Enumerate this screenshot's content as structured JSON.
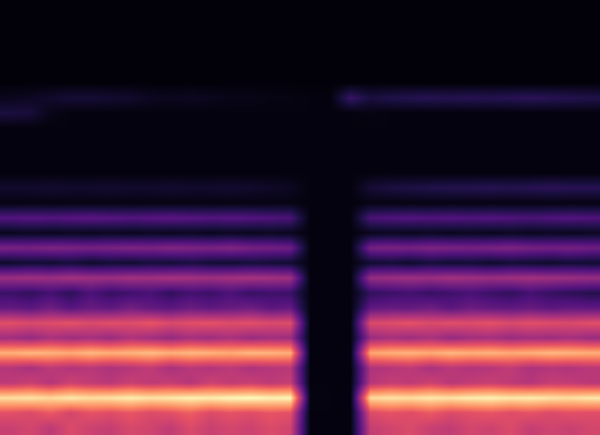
{
  "chart_data": {
    "type": "heatmap",
    "grid": false,
    "tick_labels": false,
    "zlim": [
      0,
      1
    ],
    "cells": [
      [
        0.55,
        0.58,
        0.52,
        0.6,
        0.56,
        0.54,
        0.59,
        0.57,
        0.53,
        0.6,
        0.55,
        0.58,
        0.56,
        0.6,
        0.57,
        0.02,
        0.02,
        0.02,
        0.54,
        0.57,
        0.6,
        0.55,
        0.53,
        0.58,
        0.56,
        0.6,
        0.54,
        0.57,
        0.55,
        0.58
      ],
      [
        0.62,
        0.6,
        0.65,
        0.58,
        0.63,
        0.61,
        0.64,
        0.6,
        0.62,
        0.66,
        0.6,
        0.63,
        0.61,
        0.64,
        0.62,
        0.02,
        0.02,
        0.02,
        0.6,
        0.63,
        0.61,
        0.65,
        0.6,
        0.62,
        0.64,
        0.61,
        0.63,
        0.6,
        0.62,
        0.61
      ],
      [
        0.94,
        0.95,
        0.93,
        0.96,
        0.94,
        0.95,
        0.97,
        0.95,
        0.96,
        0.98,
        0.97,
        0.99,
        1.0,
        0.98,
        0.99,
        0.03,
        0.02,
        0.02,
        0.93,
        0.95,
        0.94,
        0.96,
        0.95,
        0.97,
        0.98,
        0.96,
        0.97,
        0.95,
        0.94,
        0.96
      ],
      [
        0.52,
        0.55,
        0.5,
        0.56,
        0.53,
        0.51,
        0.55,
        0.52,
        0.54,
        0.5,
        0.56,
        0.53,
        0.55,
        0.52,
        0.54,
        0.02,
        0.02,
        0.02,
        0.5,
        0.54,
        0.52,
        0.56,
        0.51,
        0.53,
        0.55,
        0.52,
        0.5,
        0.54,
        0.53,
        0.51
      ],
      [
        0.5,
        0.47,
        0.52,
        0.49,
        0.51,
        0.48,
        0.5,
        0.53,
        0.47,
        0.51,
        0.49,
        0.52,
        0.48,
        0.5,
        0.51,
        0.02,
        0.02,
        0.02,
        0.48,
        0.5,
        0.52,
        0.47,
        0.51,
        0.49,
        0.5,
        0.53,
        0.48,
        0.5,
        0.49,
        0.51
      ],
      [
        0.84,
        0.86,
        0.85,
        0.83,
        0.86,
        0.84,
        0.85,
        0.87,
        0.84,
        0.86,
        0.85,
        0.83,
        0.86,
        0.85,
        0.84,
        0.02,
        0.02,
        0.02,
        0.82,
        0.84,
        0.85,
        0.83,
        0.86,
        0.84,
        0.85,
        0.83,
        0.84,
        0.86,
        0.85,
        0.84
      ],
      [
        0.45,
        0.42,
        0.47,
        0.44,
        0.46,
        0.43,
        0.48,
        0.45,
        0.42,
        0.46,
        0.44,
        0.47,
        0.43,
        0.45,
        0.44,
        0.02,
        0.02,
        0.02,
        0.43,
        0.46,
        0.44,
        0.47,
        0.42,
        0.45,
        0.46,
        0.43,
        0.45,
        0.44,
        0.46,
        0.43
      ],
      [
        0.62,
        0.6,
        0.61,
        0.63,
        0.6,
        0.62,
        0.61,
        0.64,
        0.6,
        0.62,
        0.63,
        0.61,
        0.62,
        0.6,
        0.61,
        0.02,
        0.02,
        0.02,
        0.6,
        0.61,
        0.63,
        0.6,
        0.62,
        0.61,
        0.63,
        0.6,
        0.62,
        0.61,
        0.6,
        0.62
      ],
      [
        0.3,
        0.28,
        0.33,
        0.27,
        0.31,
        0.29,
        0.34,
        0.3,
        0.28,
        0.32,
        0.29,
        0.31,
        0.33,
        0.28,
        0.3,
        0.02,
        0.02,
        0.02,
        0.29,
        0.31,
        0.3,
        0.33,
        0.28,
        0.32,
        0.3,
        0.29,
        0.31,
        0.28,
        0.3,
        0.29
      ],
      [
        0.2,
        0.18,
        0.22,
        0.17,
        0.24,
        0.19,
        0.21,
        0.23,
        0.18,
        0.22,
        0.2,
        0.24,
        0.19,
        0.21,
        0.2,
        0.02,
        0.02,
        0.02,
        0.18,
        0.2,
        0.22,
        0.19,
        0.21,
        0.23,
        0.2,
        0.18,
        0.22,
        0.19,
        0.17,
        0.15
      ],
      [
        0.44,
        0.45,
        0.44,
        0.46,
        0.45,
        0.44,
        0.46,
        0.45,
        0.47,
        0.46,
        0.45,
        0.46,
        0.47,
        0.46,
        0.45,
        0.02,
        0.02,
        0.02,
        0.43,
        0.44,
        0.45,
        0.44,
        0.46,
        0.45,
        0.44,
        0.45,
        0.46,
        0.45,
        0.44,
        0.43
      ],
      [
        0.08,
        0.1,
        0.09,
        0.11,
        0.08,
        0.1,
        0.09,
        0.11,
        0.1,
        0.12,
        0.1,
        0.09,
        0.11,
        0.1,
        0.09,
        0.02,
        0.02,
        0.02,
        0.09,
        0.1,
        0.08,
        0.11,
        0.09,
        0.1,
        0.08,
        0.1,
        0.09,
        0.08,
        0.1,
        0.09
      ],
      [
        0.36,
        0.35,
        0.37,
        0.36,
        0.35,
        0.36,
        0.37,
        0.36,
        0.38,
        0.37,
        0.36,
        0.38,
        0.35,
        0.34,
        0.33,
        0.02,
        0.02,
        0.02,
        0.35,
        0.36,
        0.35,
        0.37,
        0.36,
        0.35,
        0.36,
        0.37,
        0.35,
        0.34,
        0.35,
        0.33
      ],
      [
        0.05,
        0.06,
        0.05,
        0.06,
        0.05,
        0.06,
        0.05,
        0.06,
        0.05,
        0.06,
        0.05,
        0.06,
        0.05,
        0.06,
        0.05,
        0.02,
        0.02,
        0.02,
        0.05,
        0.06,
        0.05,
        0.06,
        0.05,
        0.06,
        0.05,
        0.06,
        0.05,
        0.06,
        0.05,
        0.06
      ],
      [
        0.26,
        0.27,
        0.26,
        0.27,
        0.28,
        0.27,
        0.26,
        0.27,
        0.28,
        0.27,
        0.26,
        0.27,
        0.26,
        0.25,
        0.24,
        0.02,
        0.02,
        0.02,
        0.24,
        0.25,
        0.26,
        0.25,
        0.26,
        0.25,
        0.26,
        0.25,
        0.24,
        0.25,
        0.26,
        0.25
      ],
      [
        0.03,
        0.03,
        0.03,
        0.03,
        0.03,
        0.03,
        0.03,
        0.03,
        0.03,
        0.03,
        0.03,
        0.03,
        0.03,
        0.03,
        0.03,
        0.02,
        0.02,
        0.02,
        0.03,
        0.03,
        0.03,
        0.03,
        0.03,
        0.03,
        0.03,
        0.03,
        0.03,
        0.03,
        0.03,
        0.03
      ],
      [
        0.08,
        0.08,
        0.09,
        0.08,
        0.08,
        0.09,
        0.08,
        0.08,
        0.09,
        0.08,
        0.08,
        0.09,
        0.08,
        0.07,
        0.06,
        0.02,
        0.02,
        0.02,
        0.1,
        0.12,
        0.13,
        0.14,
        0.15,
        0.15,
        0.16,
        0.15,
        0.16,
        0.17,
        0.16,
        0.16
      ],
      [
        0.02,
        0.02,
        0.02,
        0.02,
        0.02,
        0.02,
        0.02,
        0.02,
        0.02,
        0.02,
        0.02,
        0.02,
        0.02,
        0.02,
        0.02,
        0.02,
        0.02,
        0.02,
        0.02,
        0.02,
        0.02,
        0.02,
        0.02,
        0.02,
        0.02,
        0.02,
        0.02,
        0.02,
        0.02,
        0.02
      ],
      [
        0.02,
        0.02,
        0.02,
        0.02,
        0.02,
        0.02,
        0.02,
        0.02,
        0.02,
        0.02,
        0.02,
        0.02,
        0.02,
        0.02,
        0.02,
        0.02,
        0.02,
        0.02,
        0.02,
        0.02,
        0.02,
        0.02,
        0.02,
        0.02,
        0.02,
        0.02,
        0.02,
        0.02,
        0.02,
        0.02
      ],
      [
        0.02,
        0.02,
        0.02,
        0.02,
        0.02,
        0.02,
        0.02,
        0.02,
        0.02,
        0.02,
        0.02,
        0.02,
        0.02,
        0.02,
        0.02,
        0.02,
        0.02,
        0.02,
        0.02,
        0.02,
        0.02,
        0.02,
        0.02,
        0.02,
        0.02,
        0.02,
        0.02,
        0.02,
        0.02,
        0.02
      ],
      [
        0.02,
        0.02,
        0.02,
        0.02,
        0.02,
        0.02,
        0.02,
        0.02,
        0.02,
        0.02,
        0.02,
        0.02,
        0.02,
        0.02,
        0.02,
        0.02,
        0.02,
        0.02,
        0.02,
        0.02,
        0.02,
        0.02,
        0.02,
        0.02,
        0.02,
        0.02,
        0.02,
        0.02,
        0.02,
        0.02
      ],
      [
        0.12,
        0.11,
        0.04,
        0.02,
        0.02,
        0.02,
        0.02,
        0.02,
        0.02,
        0.02,
        0.02,
        0.02,
        0.02,
        0.02,
        0.02,
        0.02,
        0.02,
        0.02,
        0.03,
        0.02,
        0.02,
        0.02,
        0.02,
        0.02,
        0.02,
        0.02,
        0.02,
        0.02,
        0.02,
        0.02
      ],
      [
        0.05,
        0.06,
        0.08,
        0.1,
        0.1,
        0.09,
        0.08,
        0.06,
        0.05,
        0.06,
        0.05,
        0.04,
        0.04,
        0.03,
        0.03,
        0.02,
        0.02,
        0.2,
        0.12,
        0.14,
        0.15,
        0.16,
        0.15,
        0.16,
        0.15,
        0.16,
        0.17,
        0.16,
        0.15,
        0.14
      ],
      [
        0.01,
        0.01,
        0.01,
        0.01,
        0.01,
        0.01,
        0.01,
        0.01,
        0.01,
        0.01,
        0.01,
        0.01,
        0.01,
        0.01,
        0.01,
        0.01,
        0.01,
        0.01,
        0.01,
        0.01,
        0.01,
        0.01,
        0.01,
        0.01,
        0.01,
        0.01,
        0.01,
        0.01,
        0.01,
        0.01
      ],
      [
        0.01,
        0.01,
        0.01,
        0.01,
        0.01,
        0.01,
        0.01,
        0.01,
        0.01,
        0.01,
        0.01,
        0.01,
        0.01,
        0.01,
        0.01,
        0.01,
        0.01,
        0.01,
        0.01,
        0.01,
        0.01,
        0.01,
        0.01,
        0.01,
        0.01,
        0.01,
        0.01,
        0.01,
        0.01,
        0.01
      ],
      [
        0.01,
        0.01,
        0.01,
        0.01,
        0.01,
        0.01,
        0.01,
        0.01,
        0.01,
        0.01,
        0.01,
        0.01,
        0.01,
        0.01,
        0.01,
        0.01,
        0.01,
        0.01,
        0.01,
        0.01,
        0.01,
        0.01,
        0.01,
        0.01,
        0.01,
        0.01,
        0.01,
        0.01,
        0.01,
        0.01
      ],
      [
        0.01,
        0.01,
        0.01,
        0.01,
        0.01,
        0.01,
        0.01,
        0.01,
        0.01,
        0.01,
        0.01,
        0.01,
        0.01,
        0.01,
        0.01,
        0.01,
        0.01,
        0.01,
        0.01,
        0.01,
        0.01,
        0.01,
        0.01,
        0.01,
        0.01,
        0.01,
        0.01,
        0.01,
        0.01,
        0.01
      ],
      [
        0.01,
        0.01,
        0.01,
        0.01,
        0.01,
        0.01,
        0.01,
        0.01,
        0.01,
        0.01,
        0.01,
        0.01,
        0.01,
        0.01,
        0.01,
        0.01,
        0.01,
        0.01,
        0.01,
        0.01,
        0.01,
        0.01,
        0.01,
        0.01,
        0.01,
        0.01,
        0.01,
        0.01,
        0.01,
        0.01
      ],
      [
        0.01,
        0.01,
        0.01,
        0.01,
        0.01,
        0.01,
        0.01,
        0.01,
        0.01,
        0.01,
        0.01,
        0.01,
        0.01,
        0.01,
        0.01,
        0.01,
        0.01,
        0.01,
        0.01,
        0.01,
        0.01,
        0.01,
        0.01,
        0.01,
        0.01,
        0.01,
        0.01,
        0.01,
        0.01,
        0.01
      ]
    ]
  }
}
